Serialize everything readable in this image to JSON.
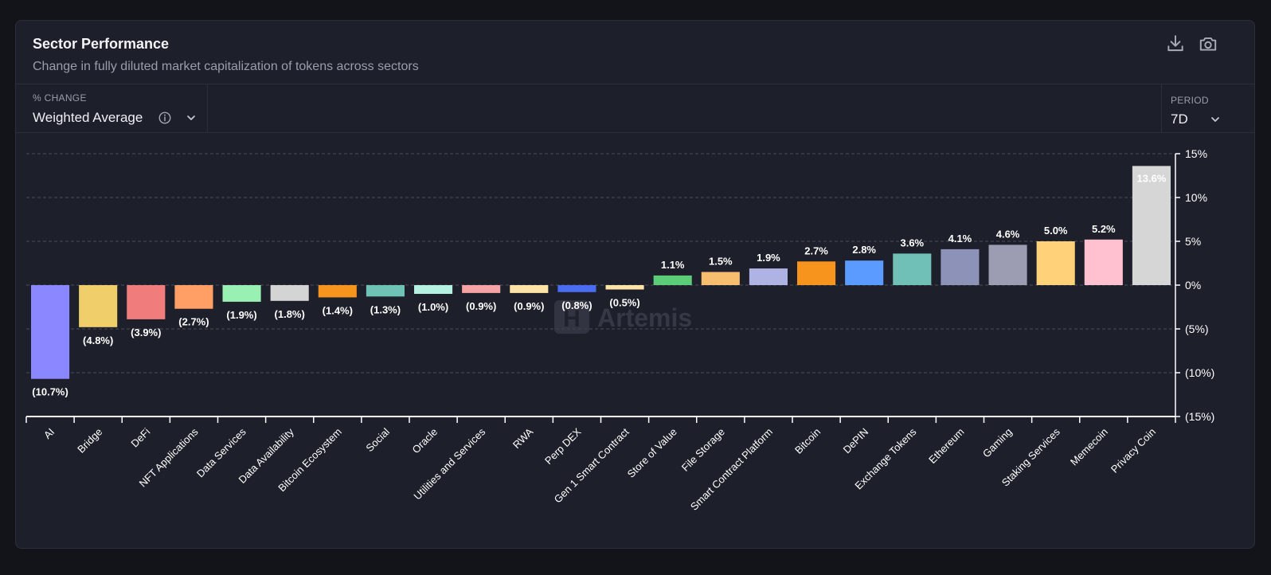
{
  "header": {
    "title": "Sector Performance",
    "subtitle": "Change in fully diluted market capitalization of tokens across sectors",
    "download_icon": "download-icon",
    "camera_icon": "camera-icon"
  },
  "controls": {
    "metric_label": "% CHANGE",
    "metric_value": "Weighted Average",
    "metric_info_icon": "info-icon",
    "period_label": "PERIOD",
    "period_value": "7D"
  },
  "watermark": "Artemis",
  "chart_data": {
    "type": "bar",
    "categories": [
      "AI",
      "Bridge",
      "DeFi",
      "NFT Applications",
      "Data Services",
      "Data Availability",
      "Bitcoin Ecosystem",
      "Social",
      "Oracle",
      "Utilities and Services",
      "RWA",
      "Perp DEX",
      "Gen 1 Smart Contract",
      "Store of Value",
      "File Storage",
      "Smart Contract Platform",
      "Bitcoin",
      "DePIN",
      "Exchange Tokens",
      "Ethereum",
      "Gaming",
      "Staking Services",
      "Memecoin",
      "Privacy Coin"
    ],
    "values": [
      -10.7,
      -4.8,
      -3.9,
      -2.7,
      -1.9,
      -1.8,
      -1.4,
      -1.3,
      -1.0,
      -0.9,
      -0.9,
      -0.8,
      -0.5,
      1.1,
      1.5,
      1.9,
      2.7,
      2.8,
      3.6,
      4.1,
      4.6,
      5.0,
      5.2,
      13.6
    ],
    "value_labels": [
      "(10.7%)",
      "(4.8%)",
      "(3.9%)",
      "(2.7%)",
      "(1.9%)",
      "(1.8%)",
      "(1.4%)",
      "(1.3%)",
      "(1.0%)",
      "(0.9%)",
      "(0.9%)",
      "(0.8%)",
      "(0.5%)",
      "1.1%",
      "1.5%",
      "1.9%",
      "2.7%",
      "2.8%",
      "3.6%",
      "4.1%",
      "4.6%",
      "5.0%",
      "5.2%",
      "13.6%"
    ],
    "colors": [
      "#8b87ff",
      "#f0cf6b",
      "#f07c7c",
      "#ff9f66",
      "#98f0b3",
      "#d4d4d4",
      "#f7941d",
      "#6fc3b6",
      "#b4f1e0",
      "#f5a3a3",
      "#fde3a7",
      "#4a6cf0",
      "#fde3a7",
      "#5ccc79",
      "#f6be6e",
      "#aeb3e3",
      "#f7941d",
      "#5b9bff",
      "#70c0b7",
      "#8d93b8",
      "#9c9cb3",
      "#ffd27a",
      "#ffc0cf",
      "#d6d6d6"
    ],
    "ylim": [
      -15,
      15
    ],
    "yticks": [
      15,
      10,
      5,
      0,
      -5,
      -10,
      -15
    ],
    "ytick_labels": [
      "15%",
      "10%",
      "5%",
      "0%",
      "(5%)",
      "(10%)",
      "(15%)"
    ],
    "grid": true,
    "y_axis_position": "right"
  }
}
